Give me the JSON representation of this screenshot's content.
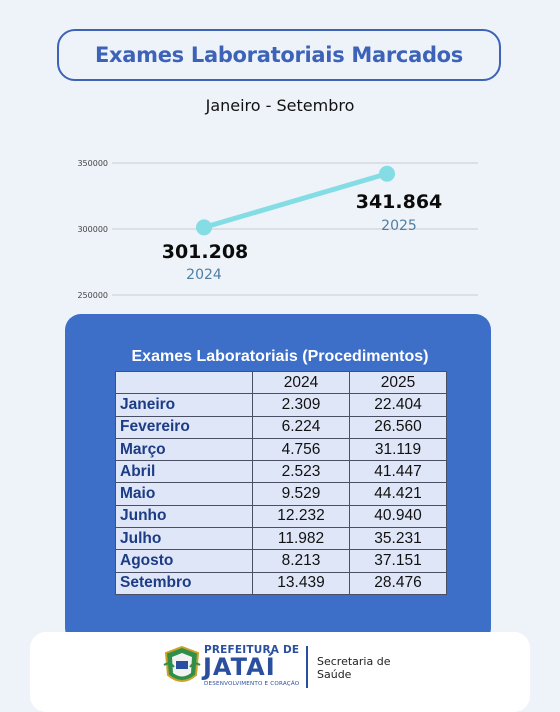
{
  "title": "Exames Laboratoriais Marcados",
  "subtitle": "Janeiro - Setembro",
  "chart_data": [
    {
      "type": "line",
      "x": [
        "2024",
        "2025"
      ],
      "series": [
        {
          "values": [
            301208,
            341864
          ]
        }
      ],
      "data_labels": [
        "301.208",
        "341.864"
      ],
      "category_labels": [
        "2024",
        "2025"
      ],
      "y_ticks": [
        "350000",
        "300000",
        "250000"
      ],
      "ylim": [
        250000,
        350000
      ],
      "grid": true,
      "colors": {
        "line": "#84dde5",
        "marker": "#84dde5",
        "category_label": "#4f7fa3"
      }
    },
    {
      "type": "table",
      "title": "Exames Laboratoriais (Procedimentos)",
      "columns": [
        "",
        "2024",
        "2025"
      ],
      "rows": [
        [
          "Janeiro",
          "2.309",
          "22.404"
        ],
        [
          "Fevereiro",
          "6.224",
          "26.560"
        ],
        [
          "Março",
          "4.756",
          "31.119"
        ],
        [
          "Abril",
          "2.523",
          "41.447"
        ],
        [
          "Maio",
          "9.529",
          "44.421"
        ],
        [
          "Junho",
          "12.232",
          "40.940"
        ],
        [
          "Julho",
          "11.982",
          "35.231"
        ],
        [
          "Agosto",
          "8.213",
          "37.151"
        ],
        [
          "Setembro",
          "13.439",
          "28.476"
        ]
      ]
    }
  ],
  "footer": {
    "brand_top": "PREFEITURA DE",
    "brand_main": "JATAÍ",
    "brand_sub": "DESENVOLVIMENTO E CORAÇÃO",
    "dept_line1": "Secretaria de",
    "dept_line2": "Saúde",
    "logo_icon": "municipal-coat-of-arms"
  },
  "colors": {
    "background": "#eef3f9",
    "title_blue": "#3d63b8",
    "table_card": "#3d6fc9",
    "table_cell": "#dfe6f7",
    "month_text": "#1d3c86"
  }
}
